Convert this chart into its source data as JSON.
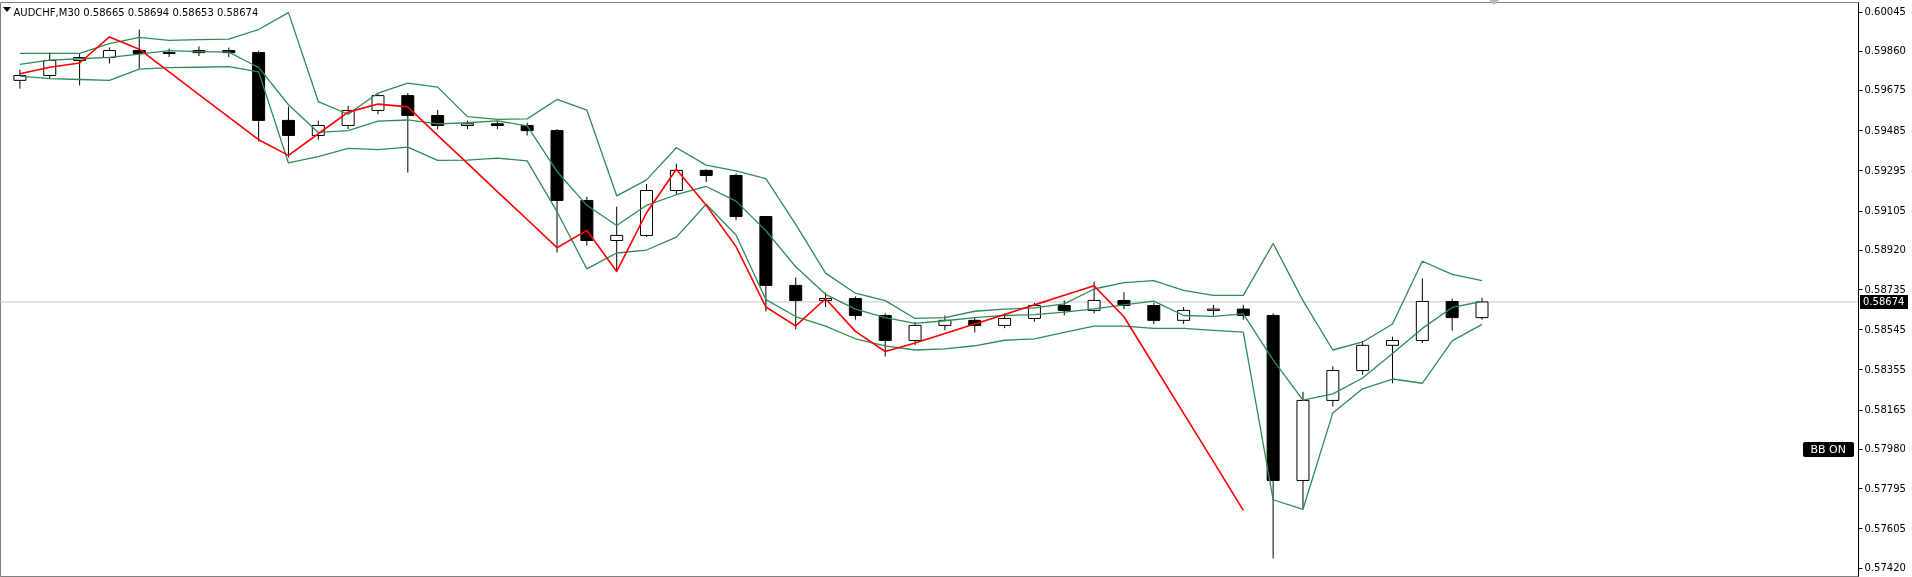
{
  "chart_data": {
    "type": "candlestick",
    "title": "AUDCHF,M30 0.58665 0.58694 0.58653 0.58674",
    "categories": [
      null,
      null,
      null,
      null,
      null,
      null,
      null,
      null,
      null,
      null,
      null,
      null,
      null,
      null,
      null,
      null,
      null,
      null,
      null,
      null,
      null,
      null,
      null,
      null,
      null,
      null,
      null,
      null,
      null,
      null,
      null,
      null,
      null,
      null,
      null,
      null,
      null,
      null,
      null,
      null,
      null,
      null,
      null,
      null,
      null,
      null,
      null,
      null,
      null,
      null
    ],
    "ohlc": [
      [
        0.5972,
        0.5977,
        0.59681,
        0.59743
      ],
      [
        0.59743,
        0.59851,
        0.5973,
        0.59814
      ],
      [
        0.59814,
        0.59845,
        0.59696,
        0.59828
      ],
      [
        0.59828,
        0.59875,
        0.598,
        0.59861
      ],
      [
        0.59861,
        0.5996,
        0.59776,
        0.59847
      ],
      [
        0.59847,
        0.5987,
        0.5983,
        0.59851
      ],
      [
        0.59851,
        0.5988,
        0.59835,
        0.59861
      ],
      [
        0.59861,
        0.59875,
        0.5983,
        0.59851
      ],
      [
        0.59851,
        0.5986,
        0.59431,
        0.59531
      ],
      [
        0.59531,
        0.59596,
        0.59356,
        0.5946
      ],
      [
        0.5946,
        0.5953,
        0.5944,
        0.59507
      ],
      [
        0.59507,
        0.596,
        0.5949,
        0.59578
      ],
      [
        0.59578,
        0.59658,
        0.5956,
        0.59648
      ],
      [
        0.59648,
        0.5966,
        0.59285,
        0.59554
      ],
      [
        0.59554,
        0.5958,
        0.5949,
        0.59507
      ],
      [
        0.59507,
        0.5953,
        0.5949,
        0.59515
      ],
      [
        0.59515,
        0.5953,
        0.5949,
        0.59507
      ],
      [
        0.59507,
        0.5952,
        0.5946,
        0.59483
      ],
      [
        0.59483,
        0.5949,
        0.58907,
        0.59153
      ],
      [
        0.59153,
        0.5917,
        0.5894,
        0.58964
      ],
      [
        0.58964,
        0.59124,
        0.58818,
        0.58988
      ],
      [
        0.58988,
        0.5923,
        0.5898,
        0.592
      ],
      [
        0.592,
        0.59327,
        0.5918,
        0.59295
      ],
      [
        0.59295,
        0.593,
        0.5924,
        0.59271
      ],
      [
        0.59271,
        0.5928,
        0.5906,
        0.59077
      ],
      [
        0.59077,
        0.5908,
        0.58629,
        0.58752
      ],
      [
        0.58752,
        0.58789,
        0.58544,
        0.58681
      ],
      [
        0.58681,
        0.58718,
        0.5865,
        0.5869
      ],
      [
        0.5869,
        0.587,
        0.5859,
        0.5861
      ],
      [
        0.5861,
        0.5862,
        0.58416,
        0.58492
      ],
      [
        0.58492,
        0.5858,
        0.5847,
        0.58563
      ],
      [
        0.58563,
        0.5861,
        0.5854,
        0.58587
      ],
      [
        0.58587,
        0.586,
        0.5853,
        0.58563
      ],
      [
        0.58563,
        0.5862,
        0.5855,
        0.58596
      ],
      [
        0.58596,
        0.5867,
        0.5858,
        0.58657
      ],
      [
        0.58657,
        0.5868,
        0.5861,
        0.58634
      ],
      [
        0.58634,
        0.5877,
        0.5862,
        0.58681
      ],
      [
        0.58681,
        0.5872,
        0.5864,
        0.58657
      ],
      [
        0.58657,
        0.5867,
        0.5857,
        0.58587
      ],
      [
        0.58587,
        0.5865,
        0.5857,
        0.58634
      ],
      [
        0.58634,
        0.5866,
        0.5861,
        0.5864
      ],
      [
        0.5864,
        0.5866,
        0.5859,
        0.5861
      ],
      [
        0.5861,
        0.5862,
        0.57463,
        0.57831
      ],
      [
        0.57831,
        0.5825,
        0.577,
        0.58209
      ],
      [
        0.58209,
        0.5837,
        0.5818,
        0.5835
      ],
      [
        0.5835,
        0.5849,
        0.5833,
        0.58469
      ],
      [
        0.58469,
        0.5851,
        0.5829,
        0.58492
      ],
      [
        0.58492,
        0.58785,
        0.5848,
        0.58676
      ],
      [
        0.58676,
        0.5869,
        0.58539,
        0.586
      ],
      [
        0.586,
        0.58694,
        0.5859,
        0.58674
      ]
    ],
    "series": [
      {
        "type": "line",
        "color": "#2e8b57",
        "values": [
          0.59847,
          0.59847,
          0.59847,
          0.59893,
          0.59923,
          0.59909,
          0.59912,
          0.59915,
          0.5996,
          0.6004,
          0.5962,
          0.5956,
          0.5966,
          0.59707,
          0.59688,
          0.59549,
          0.59536,
          0.59538,
          0.5963,
          0.5958,
          0.59175,
          0.5925,
          0.59402,
          0.5932,
          0.59293,
          0.59256,
          0.5904,
          0.5881,
          0.58715,
          0.5868,
          0.58596,
          0.586,
          0.5863,
          0.5864,
          0.58646,
          0.58665,
          0.58735,
          0.58765,
          0.58775,
          0.58728,
          0.58705,
          0.58705,
          0.5895,
          0.5868,
          0.58447,
          0.58485,
          0.5857,
          0.58866,
          0.58804,
          0.58775
        ]
      },
      {
        "type": "line",
        "color": "#2e8b57",
        "values": [
          0.59796,
          0.59816,
          0.59822,
          0.59829,
          0.59844,
          0.5986,
          0.59856,
          0.59853,
          0.59781,
          0.59605,
          0.59474,
          0.59483,
          0.59528,
          0.59533,
          0.59515,
          0.5952,
          0.59529,
          0.59505,
          0.5929,
          0.5913,
          0.59035,
          0.5913,
          0.5918,
          0.59219,
          0.5915,
          0.5901,
          0.5884,
          0.5871,
          0.5864,
          0.586,
          0.58573,
          0.58585,
          0.586,
          0.5861,
          0.58614,
          0.58626,
          0.58641,
          0.5866,
          0.58678,
          0.5861,
          0.58606,
          0.58618,
          0.584,
          0.5821,
          0.5824,
          0.58315,
          0.5843,
          0.58549,
          0.58648,
          0.58676
        ]
      },
      {
        "type": "line",
        "color": "#2e8b57",
        "values": [
          0.5974,
          0.59728,
          0.59724,
          0.5972,
          0.59773,
          0.5978,
          0.59782,
          0.59785,
          0.5976,
          0.5933,
          0.5936,
          0.59399,
          0.59393,
          0.59405,
          0.59342,
          0.59343,
          0.59353,
          0.5934,
          0.591,
          0.5883,
          0.58905,
          0.58919,
          0.5898,
          0.59135,
          0.5899,
          0.58685,
          0.58605,
          0.5856,
          0.585,
          0.58466,
          0.58447,
          0.58452,
          0.58467,
          0.58493,
          0.585,
          0.5853,
          0.5856,
          0.5856,
          0.58549,
          0.58549,
          0.5854,
          0.58531,
          0.5774,
          0.57695,
          0.5815,
          0.58264,
          0.5831,
          0.5829,
          0.5849,
          0.58568
        ]
      },
      {
        "type": "line",
        "color": "#ff0000",
        "values": [
          0.59751,
          0.59782,
          0.59802,
          0.59925,
          0.59867,
          0.5976,
          0.59653,
          0.59546,
          0.5944,
          0.59366,
          0.59468,
          0.5957,
          0.59608,
          0.59595,
          0.5946,
          0.59328,
          0.59195,
          0.59063,
          0.5893,
          0.59012,
          0.58818,
          0.59095,
          0.593,
          0.5913,
          0.58935,
          0.5865,
          0.58561,
          0.58689,
          0.58535,
          0.5844,
          0.5848,
          0.58525,
          0.5857,
          0.58615,
          0.5866,
          0.58705,
          0.5875,
          0.58604,
          0.58376,
          0.58148,
          0.5792,
          0.5769,
          null,
          null,
          null,
          null,
          null,
          null,
          null,
          null
        ]
      }
    ],
    "ylim": [
      0.5738,
      0.6009
    ],
    "yticks": [
      0.60045,
      {
        "value": 0.5986,
        "label": "0.59860"
      },
      0.59675,
      0.59485,
      0.59295,
      0.59105,
      {
        "value": 0.5892,
        "label": "0.58920"
      },
      0.58735,
      0.58545,
      0.58355,
      0.58165,
      {
        "value": 0.5798,
        "label": "0.57980"
      },
      0.57795,
      0.57605,
      {
        "value": 0.5742,
        "label": "0.57420"
      }
    ],
    "tick_labels": "y",
    "ref_lines": [
      {
        "axis": "y",
        "value": 0.58674,
        "label": "0.58674",
        "color": "#c8c8c8"
      }
    ],
    "annotations": [
      "BB ON"
    ]
  }
}
